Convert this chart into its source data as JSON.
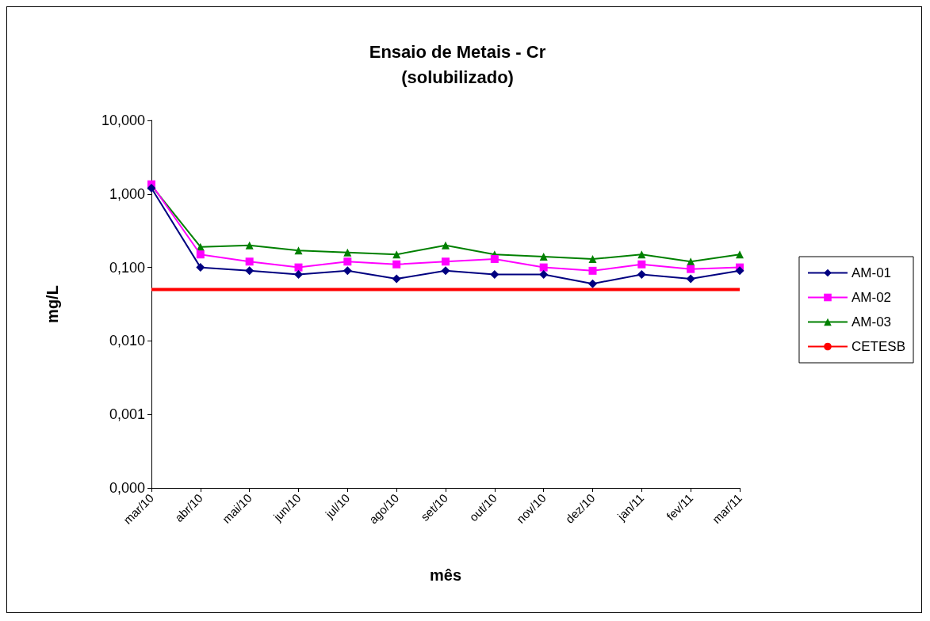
{
  "chart_data": {
    "type": "line",
    "title": "Ensaio de Metais - Cr",
    "subtitle": "(solubilizado)",
    "xlabel": "mês",
    "ylabel": "mg/L",
    "categories": [
      "mar/10",
      "abr/10",
      "mai/10",
      "jun/10",
      "jul/10",
      "ago/10",
      "set/10",
      "out/10",
      "nov/10",
      "dez/10",
      "jan/11",
      "fev/11",
      "mar/11"
    ],
    "series": [
      {
        "name": "AM-01",
        "color": "#000080",
        "marker": "diamond",
        "values": [
          1.2,
          0.1,
          0.09,
          0.08,
          0.09,
          0.07,
          0.09,
          0.08,
          0.08,
          0.06,
          0.08,
          0.07,
          0.09
        ]
      },
      {
        "name": "AM-02",
        "color": "#ff00ff",
        "marker": "square",
        "values": [
          1.35,
          0.15,
          0.12,
          0.1,
          0.12,
          0.11,
          0.12,
          0.13,
          0.1,
          0.09,
          0.11,
          0.095,
          0.1
        ]
      },
      {
        "name": "AM-03",
        "color": "#008000",
        "marker": "triangle",
        "values": [
          1.3,
          0.19,
          0.2,
          0.17,
          0.16,
          0.15,
          0.2,
          0.15,
          0.14,
          0.13,
          0.15,
          0.12,
          0.15
        ]
      },
      {
        "name": "CETESB",
        "color": "#ff0000",
        "marker": "none",
        "values": [
          0.05,
          0.05,
          0.05,
          0.05,
          0.05,
          0.05,
          0.05,
          0.05,
          0.05,
          0.05,
          0.05,
          0.05,
          0.05
        ]
      }
    ],
    "log": "y",
    "ylim": [
      0.0001,
      10
    ],
    "yticks": [
      {
        "value": 0.0001,
        "label": "0,000"
      },
      {
        "value": 0.001,
        "label": "0,001"
      },
      {
        "value": 0.01,
        "label": "0,010"
      },
      {
        "value": 0.1,
        "label": "0,100"
      },
      {
        "value": 1,
        "label": "1,000"
      },
      {
        "value": 10,
        "label": "10,000"
      }
    ],
    "grid": false,
    "legend": "right"
  }
}
